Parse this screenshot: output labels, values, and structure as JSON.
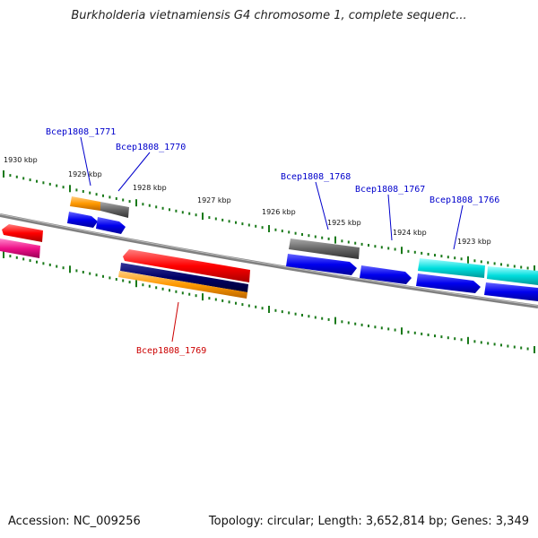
{
  "title": "Burkholderia vietnamiensis G4 chromosome 1, complete sequenc...",
  "colors": {
    "backbone": "#808080",
    "tick": "#1a7a1a",
    "label_blue": "#0000cc",
    "label_red": "#cc0000",
    "gene_red": "#ff0000",
    "gene_orange": "#ff9900",
    "gene_gray": "#666666",
    "gene_blue": "#0000ee",
    "gene_cyan": "#00dddd",
    "gene_magenta": "#ee1188",
    "gene_navy": "#000066"
  },
  "kbp_labels": [
    "1930 kbp",
    "1929 kbp",
    "1928 kbp",
    "1927 kbp",
    "1926 kbp",
    "1925 kbp",
    "1924 kbp",
    "1923 kbp"
  ],
  "gene_labels": [
    {
      "text": "Bcep1808_1771",
      "color": "blue"
    },
    {
      "text": "Bcep1808_1770",
      "color": "blue"
    },
    {
      "text": "Bcep1808_1768",
      "color": "blue"
    },
    {
      "text": "Bcep1808_1767",
      "color": "blue"
    },
    {
      "text": "Bcep1808_1766",
      "color": "blue"
    },
    {
      "text": "Bcep1808_1769",
      "color": "red"
    }
  ],
  "footer": {
    "accession": "Accession: NC_009256",
    "summary": "Topology: circular; Length: 3,652,814 bp; Genes: 3,349"
  }
}
